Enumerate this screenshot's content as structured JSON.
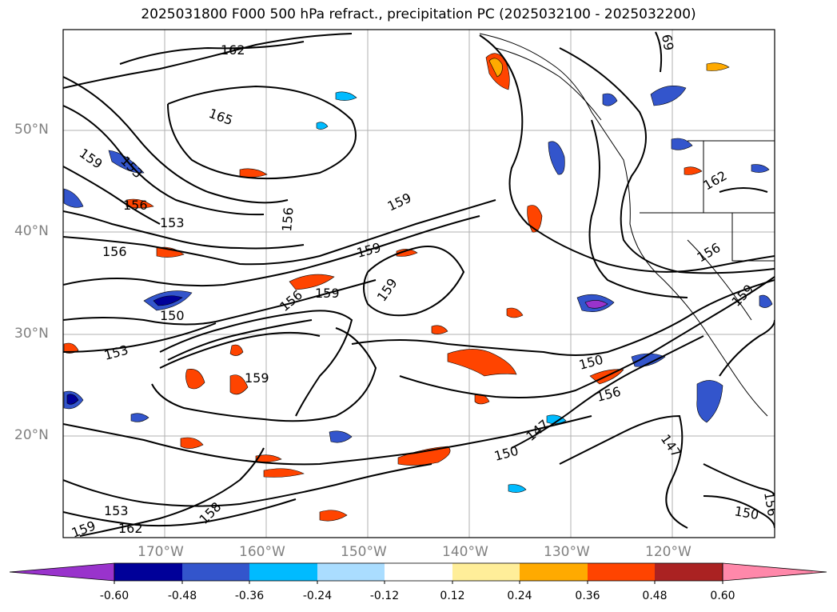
{
  "title": "2025031800 F000 500 hPa refract., precipitation PC (2025032100 - 2025032200)",
  "map": {
    "lat_labels": [
      "50°N",
      "40°N",
      "30°N",
      "20°N"
    ],
    "lon_labels": [
      "170°W",
      "160°W",
      "150°W",
      "140°W",
      "130°W",
      "120°W"
    ],
    "contour_labels": [
      "162",
      "165",
      "159",
      "153",
      "156",
      "156",
      "153",
      "156",
      "156",
      "159",
      "159",
      "159",
      "156",
      "159",
      "150",
      "153",
      "159",
      "150",
      "156",
      "147",
      "150",
      "147",
      "150",
      "153",
      "159",
      "162",
      "158",
      "162",
      "156",
      "159",
      "69"
    ]
  },
  "colorbar": {
    "ticks": [
      "-0.60",
      "-0.48",
      "-0.36",
      "-0.24",
      "-0.12",
      "0.12",
      "0.24",
      "0.36",
      "0.48",
      "0.60"
    ],
    "colors": [
      "#9933cc",
      "#000099",
      "#3355cc",
      "#00bbff",
      "#aaddff",
      "#ffffff",
      "#ffee99",
      "#ffaa00",
      "#ff4400",
      "#aa2222",
      "#ff88aa"
    ]
  }
}
